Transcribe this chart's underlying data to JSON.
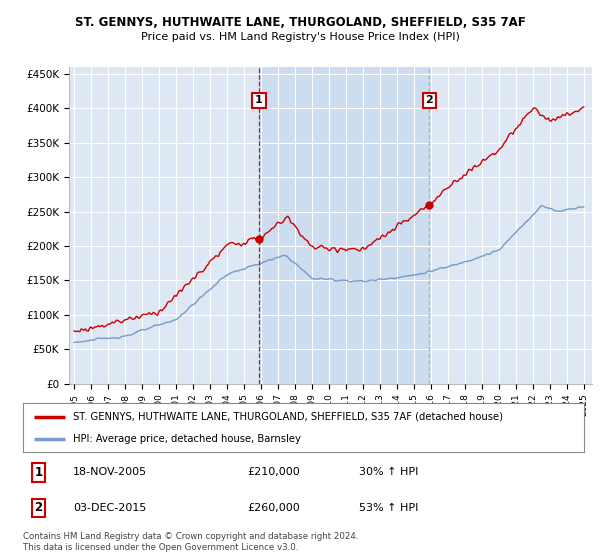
{
  "title": "ST. GENNYS, HUTHWAITE LANE, THURGOLAND, SHEFFIELD, S35 7AF",
  "subtitle": "Price paid vs. HM Land Registry's House Price Index (HPI)",
  "legend_line1": "ST. GENNYS, HUTHWAITE LANE, THURGOLAND, SHEFFIELD, S35 7AF (detached house)",
  "legend_line2": "HPI: Average price, detached house, Barnsley",
  "footnote1": "Contains HM Land Registry data © Crown copyright and database right 2024.",
  "footnote2": "This data is licensed under the Open Government Licence v3.0.",
  "annotation1_label": "1",
  "annotation1_date": "18-NOV-2005",
  "annotation1_price": "£210,000",
  "annotation1_hpi": "30% ↑ HPI",
  "annotation2_label": "2",
  "annotation2_date": "03-DEC-2015",
  "annotation2_price": "£260,000",
  "annotation2_hpi": "53% ↑ HPI",
  "sale1_x": 2005.88,
  "sale1_y": 210000,
  "sale2_x": 2015.92,
  "sale2_y": 260000,
  "ylim": [
    0,
    460000
  ],
  "xlim": [
    1994.7,
    2025.5
  ],
  "yticks": [
    0,
    50000,
    100000,
    150000,
    200000,
    250000,
    300000,
    350000,
    400000,
    450000
  ],
  "ytick_labels": [
    "£0",
    "£50K",
    "£100K",
    "£150K",
    "£200K",
    "£250K",
    "£300K",
    "£350K",
    "£400K",
    "£450K"
  ],
  "bg_color": "#dde8f4",
  "highlight_color": "#ccddf0",
  "grid_color": "#ffffff",
  "red_line_color": "#cc0000",
  "blue_line_color": "#7799cc",
  "sale_dot_color": "#cc0000",
  "vline1_color": "#cc0000",
  "vline2_color": "#aaaaaa",
  "annotation_box_color": "#cc0000"
}
